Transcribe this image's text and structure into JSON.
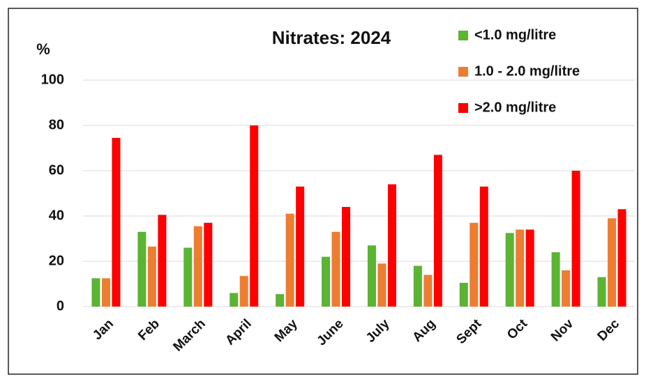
{
  "chart_data": {
    "type": "bar",
    "title": "Nitrates: 2024",
    "y_label": "%",
    "categories": [
      "Jan",
      "Feb",
      "March",
      "April",
      "May",
      "June",
      "July",
      "Aug",
      "Sept",
      "Oct",
      "Nov",
      "Dec"
    ],
    "series": [
      {
        "name": "<1.0 mg/litre",
        "color": "#5bb432",
        "values": [
          12.5,
          33,
          26,
          6,
          5.5,
          22,
          27,
          18,
          10.5,
          32.5,
          24,
          13
        ]
      },
      {
        "name": "1.0 - 2.0 mg/litre",
        "color": "#ed7d31",
        "values": [
          12.5,
          26.5,
          35.5,
          13.5,
          41,
          33,
          19,
          14,
          37,
          34,
          16,
          39
        ]
      },
      {
        "name": ">2.0 mg/litre",
        "color": "#ff0000",
        "values": [
          74.5,
          40.5,
          37,
          80,
          53,
          44,
          54,
          67,
          53,
          34,
          60,
          43
        ]
      }
    ],
    "ylim": [
      0,
      100
    ],
    "yticks": [
      0,
      20,
      40,
      60,
      80,
      100
    ],
    "grid": true,
    "legend": "top-right"
  }
}
